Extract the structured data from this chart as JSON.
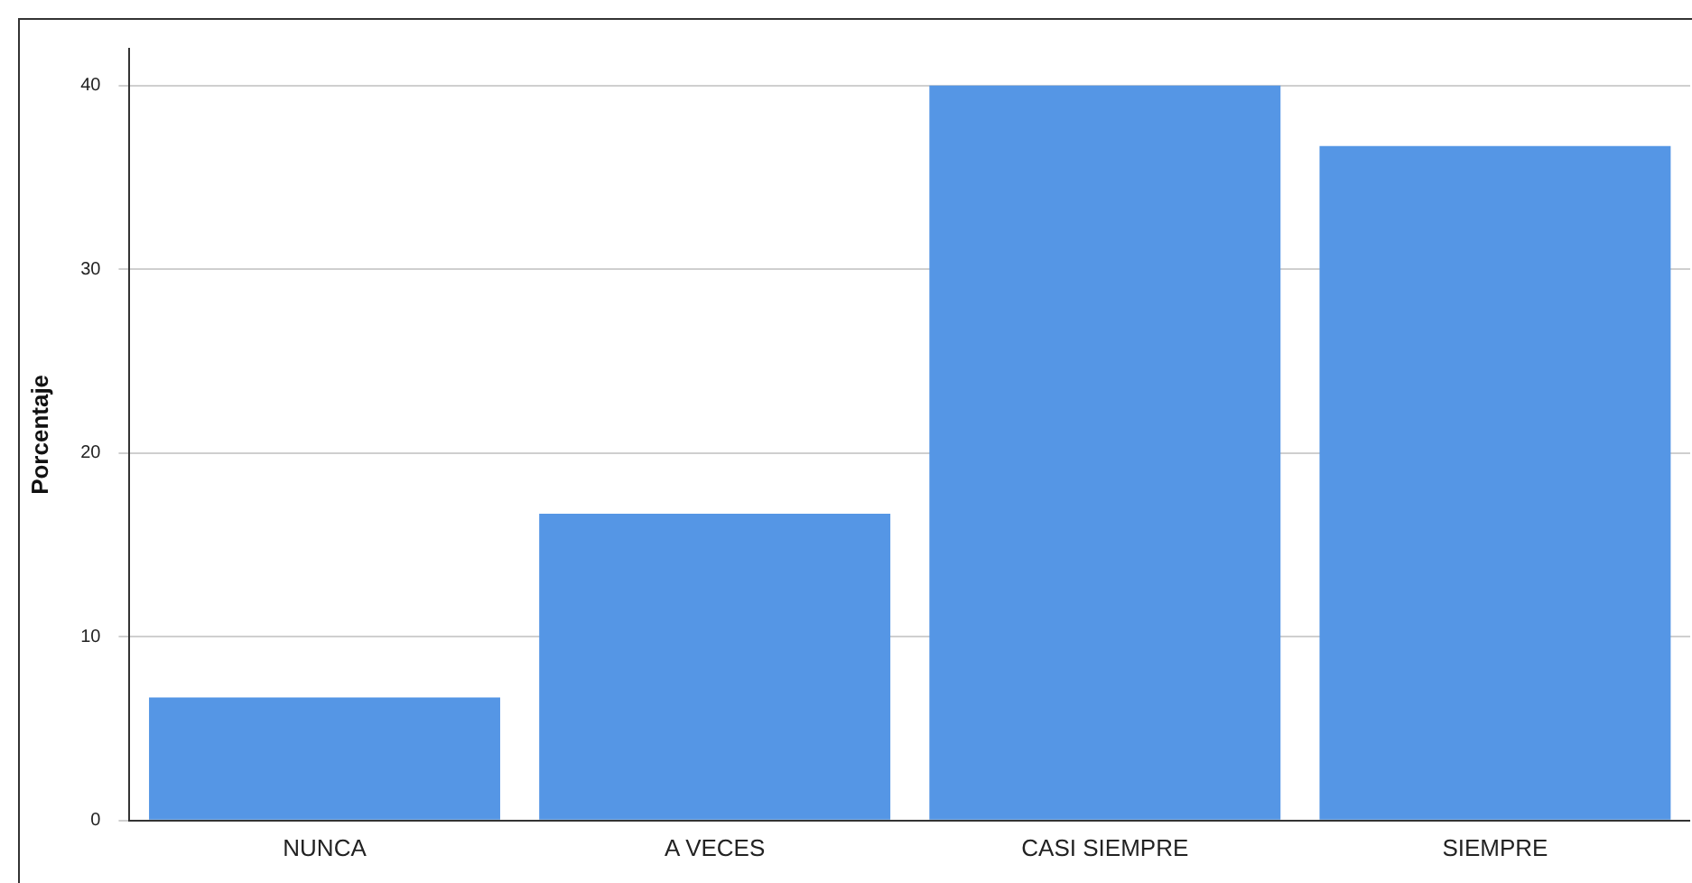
{
  "chart_data": {
    "type": "bar",
    "ylabel": "Porcentaje",
    "categories": [
      "NUNCA",
      "A VECES",
      "CASI SIEMPRE",
      "SIEMPRE"
    ],
    "values": [
      6.7,
      16.7,
      40,
      36.7
    ],
    "color": "#5596e5",
    "ylim": [
      0,
      42
    ],
    "yticks": [
      0,
      10,
      20,
      30,
      40
    ],
    "grid": "y",
    "legend": false
  }
}
